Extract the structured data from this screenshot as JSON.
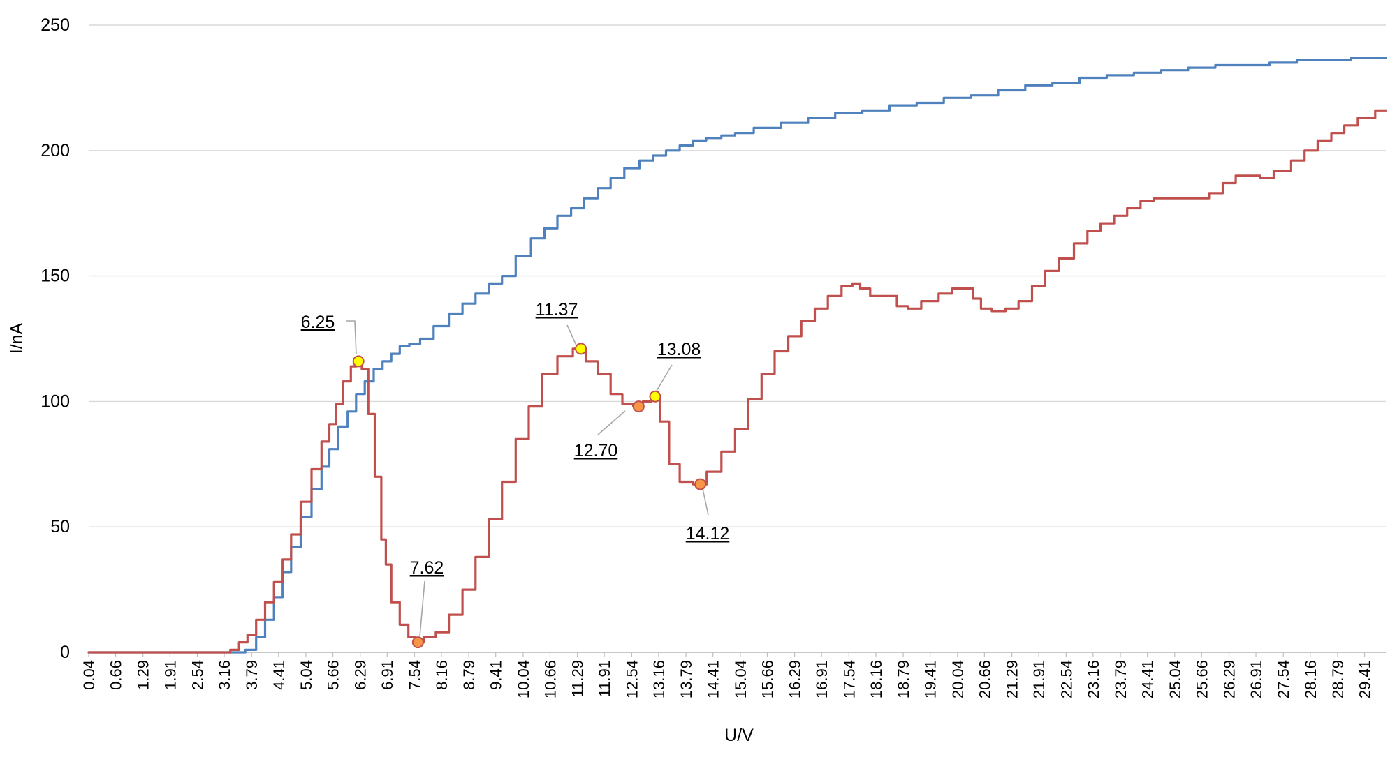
{
  "chart_data": {
    "type": "line",
    "xlabel": "U/V",
    "ylabel": "I/nA",
    "ylim": [
      0,
      250
    ],
    "xlim": [
      0.04,
      29.9
    ],
    "grid": "horizontal",
    "yticks": [
      "0",
      "50",
      "100",
      "150",
      "200",
      "250"
    ],
    "xticks": [
      "0.04",
      "0.66",
      "1.29",
      "1.91",
      "2.54",
      "3.16",
      "3.79",
      "4.41",
      "5.04",
      "5.66",
      "6.29",
      "6.91",
      "7.54",
      "8.16",
      "8.79",
      "9.41",
      "10.04",
      "10.66",
      "11.29",
      "11.91",
      "12.54",
      "13.16",
      "13.79",
      "14.41",
      "15.04",
      "15.66",
      "16.29",
      "16.91",
      "17.54",
      "18.16",
      "18.79",
      "19.41",
      "20.04",
      "20.66",
      "21.29",
      "21.91",
      "22.54",
      "23.16",
      "23.79",
      "24.41",
      "25.04",
      "25.66",
      "26.29",
      "26.91",
      "27.54",
      "28.16",
      "28.79",
      "29.41"
    ],
    "series": [
      {
        "color": "#4f81bd",
        "points": [
          [
            0.04,
            0
          ],
          [
            3.5,
            0
          ],
          [
            3.79,
            1
          ],
          [
            4.0,
            6
          ],
          [
            4.2,
            13
          ],
          [
            4.41,
            22
          ],
          [
            4.6,
            32
          ],
          [
            4.8,
            42
          ],
          [
            5.04,
            54
          ],
          [
            5.3,
            65
          ],
          [
            5.5,
            74
          ],
          [
            5.66,
            81
          ],
          [
            5.9,
            90
          ],
          [
            6.1,
            96
          ],
          [
            6.29,
            103
          ],
          [
            6.5,
            108
          ],
          [
            6.7,
            113
          ],
          [
            6.91,
            116
          ],
          [
            7.1,
            119
          ],
          [
            7.3,
            122
          ],
          [
            7.54,
            123
          ],
          [
            7.8,
            125
          ],
          [
            8.16,
            130
          ],
          [
            8.5,
            135
          ],
          [
            8.79,
            139
          ],
          [
            9.1,
            143
          ],
          [
            9.41,
            147
          ],
          [
            9.7,
            150
          ],
          [
            10.04,
            158
          ],
          [
            10.4,
            165
          ],
          [
            10.66,
            169
          ],
          [
            11.0,
            174
          ],
          [
            11.29,
            177
          ],
          [
            11.6,
            181
          ],
          [
            11.91,
            185
          ],
          [
            12.2,
            189
          ],
          [
            12.54,
            193
          ],
          [
            12.9,
            196
          ],
          [
            13.16,
            198
          ],
          [
            13.5,
            200
          ],
          [
            13.79,
            202
          ],
          [
            14.1,
            204
          ],
          [
            14.41,
            205
          ],
          [
            14.8,
            206
          ],
          [
            15.04,
            207
          ],
          [
            15.66,
            209
          ],
          [
            16.29,
            211
          ],
          [
            16.91,
            213
          ],
          [
            17.54,
            215
          ],
          [
            18.16,
            216
          ],
          [
            18.79,
            218
          ],
          [
            19.41,
            219
          ],
          [
            20.04,
            221
          ],
          [
            20.66,
            222
          ],
          [
            21.29,
            224
          ],
          [
            21.91,
            226
          ],
          [
            22.54,
            227
          ],
          [
            23.16,
            229
          ],
          [
            23.79,
            230
          ],
          [
            24.41,
            231
          ],
          [
            25.04,
            232
          ],
          [
            25.66,
            233
          ],
          [
            26.29,
            234
          ],
          [
            26.91,
            234
          ],
          [
            27.54,
            235
          ],
          [
            28.16,
            236
          ],
          [
            28.79,
            236
          ],
          [
            29.41,
            237
          ],
          [
            29.9,
            237
          ]
        ]
      },
      {
        "color": "#c0504d",
        "points": [
          [
            0.04,
            0
          ],
          [
            3.2,
            0
          ],
          [
            3.4,
            1
          ],
          [
            3.6,
            4
          ],
          [
            3.79,
            7
          ],
          [
            4.0,
            13
          ],
          [
            4.2,
            20
          ],
          [
            4.41,
            28
          ],
          [
            4.6,
            37
          ],
          [
            4.8,
            47
          ],
          [
            5.04,
            60
          ],
          [
            5.3,
            73
          ],
          [
            5.5,
            84
          ],
          [
            5.66,
            91
          ],
          [
            5.8,
            99
          ],
          [
            6.0,
            108
          ],
          [
            6.15,
            114
          ],
          [
            6.25,
            116
          ],
          [
            6.4,
            113
          ],
          [
            6.55,
            95
          ],
          [
            6.7,
            70
          ],
          [
            6.85,
            45
          ],
          [
            6.91,
            35
          ],
          [
            7.1,
            20
          ],
          [
            7.3,
            11
          ],
          [
            7.5,
            6
          ],
          [
            7.62,
            4
          ],
          [
            7.9,
            6
          ],
          [
            8.16,
            8
          ],
          [
            8.5,
            15
          ],
          [
            8.79,
            25
          ],
          [
            9.1,
            38
          ],
          [
            9.41,
            53
          ],
          [
            9.7,
            68
          ],
          [
            10.04,
            85
          ],
          [
            10.3,
            98
          ],
          [
            10.66,
            111
          ],
          [
            11.0,
            118
          ],
          [
            11.37,
            121
          ],
          [
            11.6,
            116
          ],
          [
            11.91,
            111
          ],
          [
            12.2,
            103
          ],
          [
            12.45,
            99
          ],
          [
            12.7,
            98
          ],
          [
            12.9,
            100
          ],
          [
            13.08,
            102
          ],
          [
            13.3,
            92
          ],
          [
            13.5,
            75
          ],
          [
            13.79,
            68
          ],
          [
            14.12,
            67
          ],
          [
            14.41,
            72
          ],
          [
            14.8,
            80
          ],
          [
            15.04,
            89
          ],
          [
            15.4,
            101
          ],
          [
            15.66,
            111
          ],
          [
            16.0,
            120
          ],
          [
            16.29,
            126
          ],
          [
            16.6,
            132
          ],
          [
            16.91,
            137
          ],
          [
            17.2,
            142
          ],
          [
            17.54,
            146
          ],
          [
            17.7,
            147
          ],
          [
            17.9,
            145
          ],
          [
            18.16,
            142
          ],
          [
            18.5,
            142
          ],
          [
            18.79,
            138
          ],
          [
            19.0,
            137
          ],
          [
            19.41,
            140
          ],
          [
            19.8,
            143
          ],
          [
            20.04,
            145
          ],
          [
            20.3,
            145
          ],
          [
            20.5,
            141
          ],
          [
            20.66,
            137
          ],
          [
            21.0,
            136
          ],
          [
            21.29,
            137
          ],
          [
            21.6,
            140
          ],
          [
            21.91,
            146
          ],
          [
            22.2,
            152
          ],
          [
            22.54,
            157
          ],
          [
            22.9,
            163
          ],
          [
            23.16,
            168
          ],
          [
            23.5,
            171
          ],
          [
            23.79,
            174
          ],
          [
            24.1,
            177
          ],
          [
            24.41,
            180
          ],
          [
            24.7,
            181
          ],
          [
            25.04,
            181
          ],
          [
            25.4,
            181
          ],
          [
            25.66,
            181
          ],
          [
            26.0,
            183
          ],
          [
            26.29,
            187
          ],
          [
            26.6,
            190
          ],
          [
            26.91,
            190
          ],
          [
            27.1,
            189
          ],
          [
            27.54,
            192
          ],
          [
            27.9,
            196
          ],
          [
            28.16,
            200
          ],
          [
            28.5,
            204
          ],
          [
            28.79,
            207
          ],
          [
            29.1,
            210
          ],
          [
            29.41,
            213
          ],
          [
            29.9,
            216
          ]
        ]
      }
    ],
    "annotations": [
      {
        "label": "6.25",
        "x": 6.25,
        "y": 116,
        "marker": "#ffff00"
      },
      {
        "label": "7.62",
        "x": 7.62,
        "y": 4,
        "marker": "#f79646"
      },
      {
        "label": "11.37",
        "x": 11.37,
        "y": 121,
        "marker": "#ffff00"
      },
      {
        "label": "12.70",
        "x": 12.7,
        "y": 98,
        "marker": "#f79646"
      },
      {
        "label": "13.08",
        "x": 13.08,
        "y": 102,
        "marker": "#ffff00"
      },
      {
        "label": "14.12",
        "x": 14.12,
        "y": 67,
        "marker": "#f79646"
      }
    ],
    "colors": {
      "grid": "#d9d9d9",
      "axis": "#bfbfbf",
      "leader": "#a6a6a6",
      "marker_stroke": "#c0504d"
    }
  }
}
